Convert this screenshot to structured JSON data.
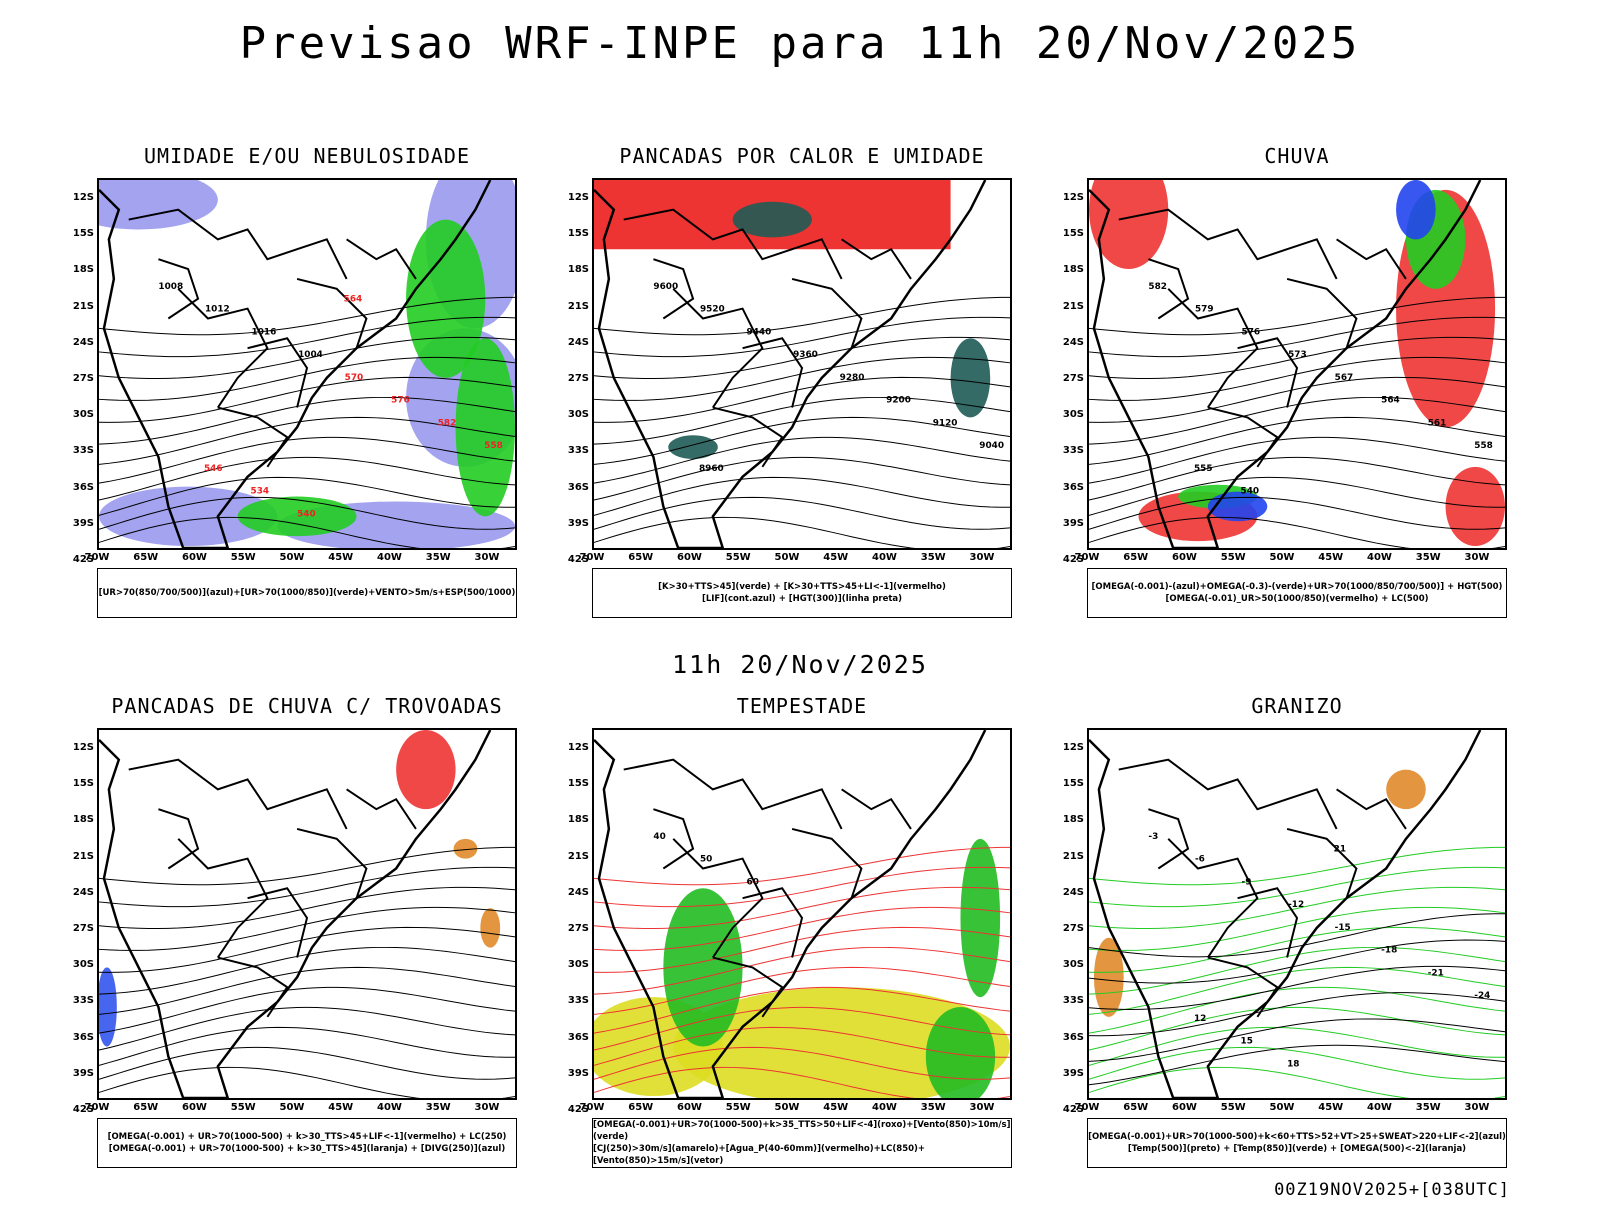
{
  "title": "Previsao WRF-INPE  para 11h 20/Nov/2025",
  "mid_date": "11h 20/Nov/2025",
  "footer": "00Z19NOV2025+[038UTC]",
  "lat_labels": [
    "12S",
    "15S",
    "18S",
    "21S",
    "24S",
    "27S",
    "30S",
    "33S",
    "36S",
    "39S",
    "42S"
  ],
  "lon_labels": [
    "70W",
    "65W",
    "60W",
    "55W",
    "50W",
    "45W",
    "40W",
    "35W",
    "30W"
  ],
  "panels": [
    {
      "title": "UMIDADE E/OU NEBULOSIDADE",
      "legend": [
        "[UR>70(850/700/500)](azul)+[UR>70(1000/850)](verde)+VENTO>5m/s+ESP(500/1000)"
      ],
      "contour_labels": [
        "1008",
        "1012",
        "1016",
        "1004",
        "570",
        "576",
        "582",
        "558",
        "546",
        "534",
        "540",
        "564"
      ],
      "colors": {
        "azul": "#9999ee",
        "verde": "#22cc22",
        "vermelho": "#ee2222"
      }
    },
    {
      "title": "PANCADAS POR CALOR E UMIDADE",
      "legend": [
        "[K>30+TTS>45](verde) + [K>30+TTS>45+LI<-1](vermelho)",
        "[LIF](cont.azul) + [HGT(300)](linha preta)"
      ],
      "contour_labels": [
        "9600",
        "9520",
        "9440",
        "9360",
        "9280",
        "9200",
        "9120",
        "9040",
        "8960"
      ],
      "colors": {
        "verde": "#1f5b55",
        "vermelho": "#ee3333",
        "azul": "#3355ee"
      }
    },
    {
      "title": "CHUVA",
      "legend": [
        "[OMEGA(-0.001)-(azul)+OMEGA(-0.3)-(verde)+UR>70(1000/850/700/500)] + HGT(500)",
        "[OMEGA(-0.01)_UR>50(1000/850)(vermelho) + LC(500)"
      ],
      "contour_labels": [
        "582",
        "579",
        "576",
        "573",
        "567",
        "564",
        "561",
        "558",
        "555",
        "540"
      ],
      "colors": {
        "azul": "#2244ee",
        "verde": "#22cc22",
        "vermelho": "#ee3333"
      }
    },
    {
      "title": "PANCADAS DE CHUVA C/ TROVOADAS",
      "legend": [
        "[OMEGA(-0.001) + UR>70(1000-500) + k>30_TTS>45+LIF<-1](vermelho) + LC(250)",
        "[OMEGA(-0.001) + UR>70(1000-500) + k>30_TTS>45](laranja) + [DIVG(250)](azul)"
      ],
      "contour_labels": [],
      "colors": {
        "vermelho": "#ee3333",
        "laranja": "#e08a2a",
        "azul": "#3355ee"
      }
    },
    {
      "title": "TEMPESTADE",
      "legend": [
        "[OMEGA(-0.001)+UR>70(1000-500)+k>35_TTS>50+LIF<-4](roxo)+[Vento(850)>10m/s](verde)",
        "[CJ(250)>30m/s](amarelo)+[Agua_P(40-60mm)](vermelho)+LC(850)+[Vento(850)>15m/s](vetor)"
      ],
      "contour_labels": [
        "40",
        "50",
        "60"
      ],
      "colors": {
        "amarelo": "#dddd22",
        "verde": "#22bb22",
        "vermelho": "#ee3333"
      }
    },
    {
      "title": "GRANIZO",
      "legend": [
        "[OMEGA(-0.001)+UR>70(1000-500)+k<60+TTS>52+VT>25+SWEAT>220+LIF<-2](azul)",
        "[Temp(500)](preto) + [Temp(850)](verde) + [OMEGA(500)<-2](laranja)"
      ],
      "contour_labels": [
        "-3",
        "-6",
        "-9",
        "-12",
        "-15",
        "-18",
        "-21",
        "-24",
        "12",
        "15",
        "18",
        "21"
      ],
      "colors": {
        "preto": "#000000",
        "verde": "#22cc22",
        "laranja": "#e08a2a"
      }
    }
  ]
}
